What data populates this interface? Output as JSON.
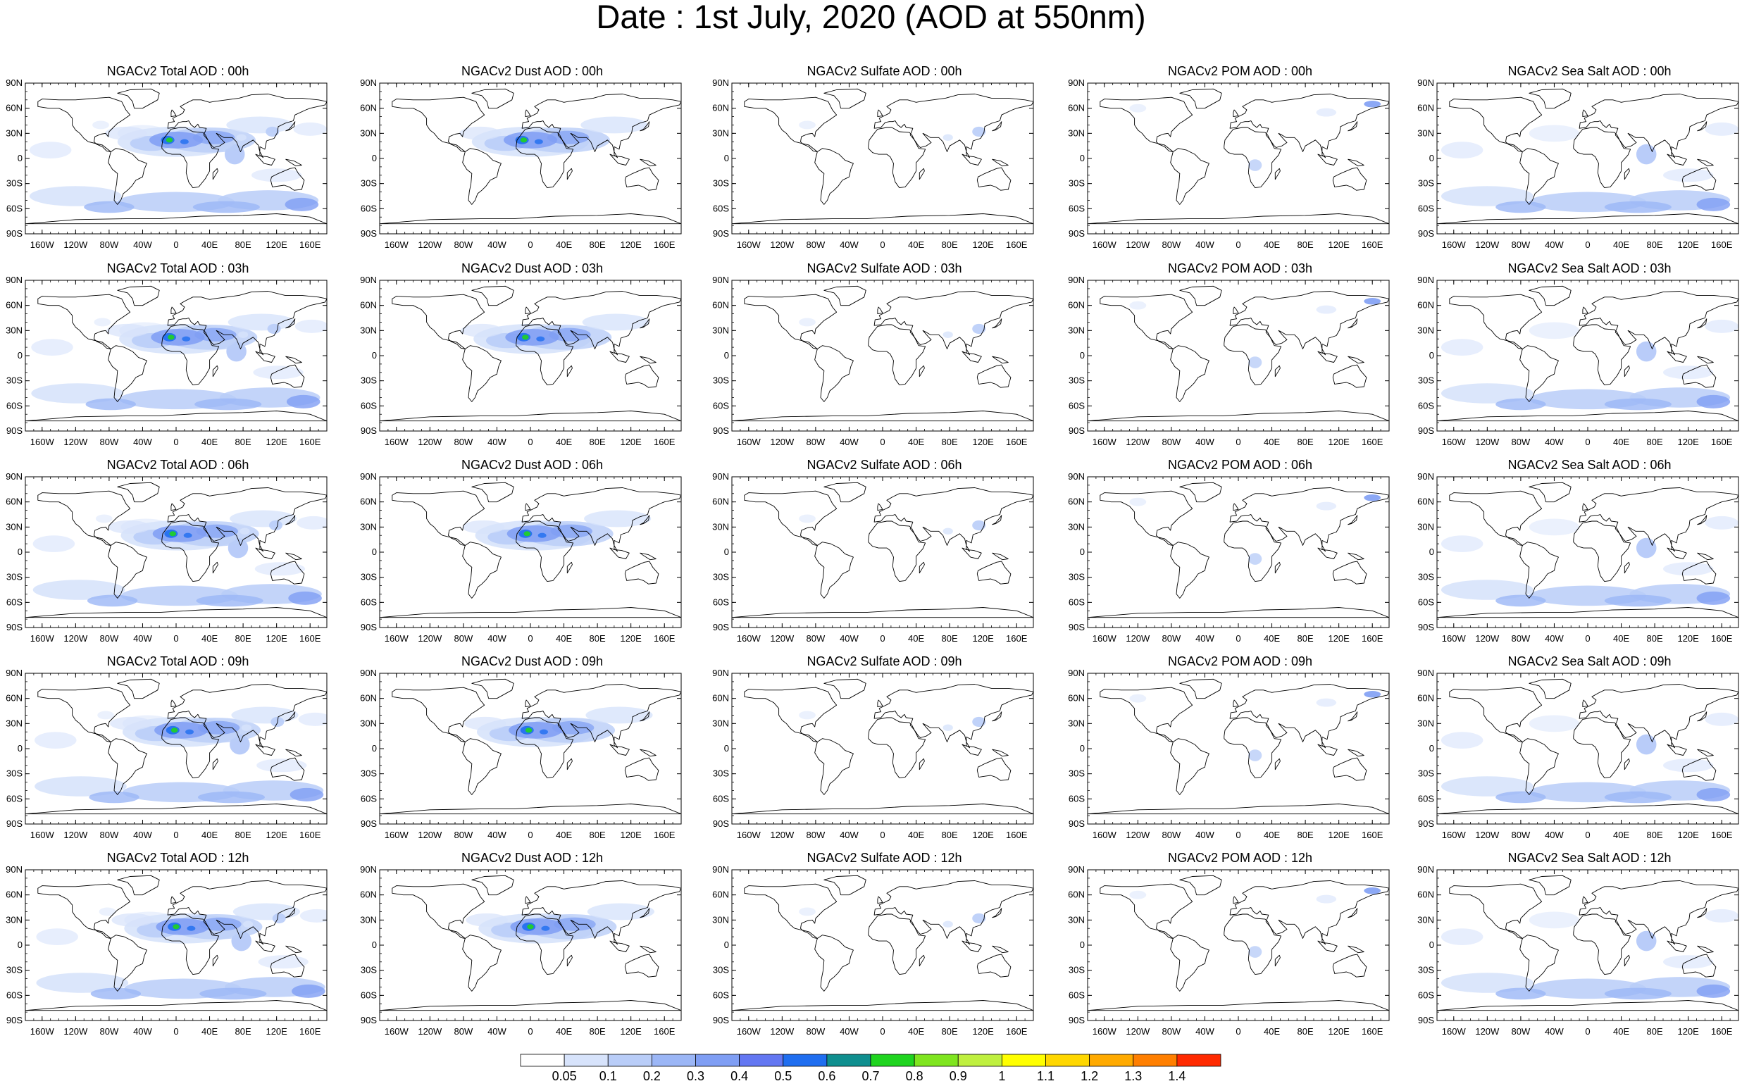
{
  "title": "Date : 1st July, 2020 (AOD at 550nm)",
  "axes": {
    "lat_labels": [
      "90N",
      "60N",
      "30N",
      "0",
      "30S",
      "60S",
      "90S"
    ],
    "lon_labels": [
      "160W",
      "120W",
      "80W",
      "40W",
      "0",
      "40E",
      "80E",
      "120E",
      "160E"
    ]
  },
  "panels": [
    [
      "NGACv2 Total AOD : 00h",
      "NGACv2 Dust AOD : 00h",
      "NGACv2 Sulfate AOD : 00h",
      "NGACv2 POM AOD : 00h",
      "NGACv2 Sea Salt AOD : 00h"
    ],
    [
      "NGACv2 Total AOD : 03h",
      "NGACv2 Dust AOD : 03h",
      "NGACv2 Sulfate AOD : 03h",
      "NGACv2 POM AOD : 03h",
      "NGACv2 Sea Salt AOD : 03h"
    ],
    [
      "NGACv2 Total AOD : 06h",
      "NGACv2 Dust AOD : 06h",
      "NGACv2 Sulfate AOD : 06h",
      "NGACv2 POM AOD : 06h",
      "NGACv2 Sea Salt AOD : 06h"
    ],
    [
      "NGACv2 Total AOD : 09h",
      "NGACv2 Dust AOD : 09h",
      "NGACv2 Sulfate AOD : 09h",
      "NGACv2 POM AOD : 09h",
      "NGACv2 Sea Salt  AOD : 09h"
    ],
    [
      "NGACv2 Total AOD  : 12h",
      "NGACv2 Dust AOD : 12h",
      "NGACv2 Sulfate AOD : 12h",
      "NGACv2 POM  AOD : 12h",
      "NGACv2 Sea Salt  AOD : 12h"
    ]
  ],
  "colorbar": {
    "labels": [
      "0.05",
      "0.1",
      "0.2",
      "0.3",
      "0.4",
      "0.5",
      "0.6",
      "0.7",
      "0.8",
      "0.9",
      "1",
      "1.1",
      "1.2",
      "1.3",
      "1.4"
    ],
    "colors": [
      "#ffffff",
      "#d7e3fb",
      "#b9cdf8",
      "#9bb6f6",
      "#7f9ef4",
      "#6377f2",
      "#1f6ef0",
      "#0f8f8f",
      "#1fd41f",
      "#7fe51f",
      "#bff03f",
      "#ffff00",
      "#ffd700",
      "#ffaa00",
      "#ff7f00",
      "#ff2a00"
    ]
  }
}
